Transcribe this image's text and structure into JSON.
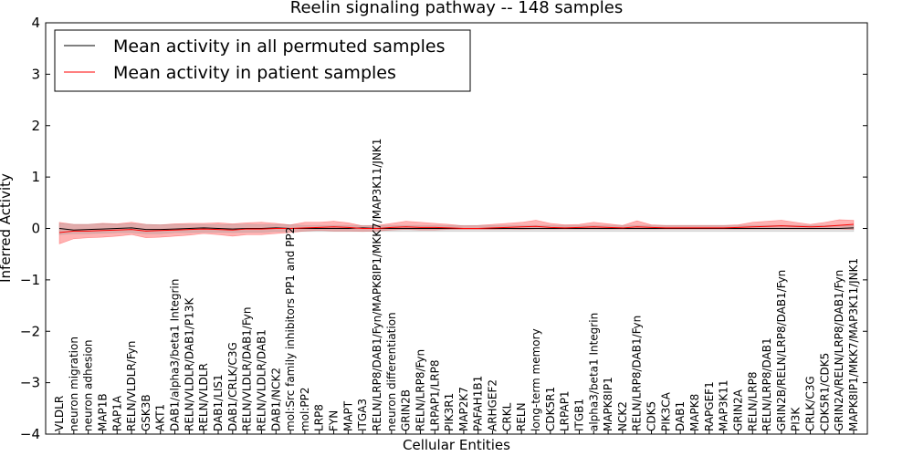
{
  "chart_data": {
    "type": "line",
    "title": "Reelin signaling pathway -- 148 samples",
    "xlabel": "Cellular Entities",
    "ylabel": "Inferred Activity",
    "ylim": [
      -4,
      4
    ],
    "yticks": [
      "−4",
      "−3",
      "−2",
      "−1",
      "0",
      "1",
      "2",
      "3",
      "4"
    ],
    "legend_position": "top-left",
    "categories": [
      "VLDLR",
      "neuron migration",
      "neuron adhesion",
      "MAP1B",
      "RAP1A",
      "RELN/VLDLR/Fyn",
      "GSK3B",
      "AKT1",
      "DAB1/alpha3/beta1 Integrin",
      "RELN/VLDLR/DAB1/P13K",
      "RELN/VLDLR",
      "DAB1/LIS1",
      "DAB1/CRLK/C3G",
      "RELN/VLDLR/DAB1/Fyn",
      "RELN/VLDLR/DAB1",
      "DAB1/NCK2",
      "mol:Src family inhibitors PP1 and PP2",
      "mol:PP2",
      "LRP8",
      "FYN",
      "MAPT",
      "ITGA3",
      "RELN/LRP8/DAB1/Fyn/MAPK8IP1/MKK7/MAP3K11/JNK1",
      "neuron differentiation",
      "GRIN2B",
      "RELN/LRP8/Fyn",
      "LRPAP1/LRP8",
      "PIK3R1",
      "MAP2K7",
      "PAFAH1B1",
      "ARHGEF2",
      "CRKL",
      "RELN",
      "long-term memory",
      "CDK5R1",
      "LRPAP1",
      "ITGB1",
      "alpha3/beta1 Integrin",
      "MAPK8IP1",
      "NCK2",
      "RELN/LRP8/DAB1/Fyn",
      "CDK5",
      "PIK3CA",
      "DAB1",
      "MAPK8",
      "RAPGEF1",
      "MAP3K11",
      "GRIN2A",
      "RELN/LRP8",
      "RELN/LRP8/DAB1",
      "GRIN2B/RELN/LRP8/DAB1/Fyn",
      "PI3K",
      "CRLK/C3G",
      "CDK5R1/CDK5",
      "GRIN2A/RELN/LRP8/DAB1/Fyn",
      "MAPK8IP1/MKK7/MAP3K11/JNK1"
    ],
    "series": [
      {
        "name": "Mean activity in all permuted samples",
        "color": "#000000",
        "values": [
          0.0,
          -0.03,
          -0.02,
          -0.01,
          0.0,
          0.01,
          -0.02,
          -0.02,
          -0.01,
          0.0,
          0.01,
          0.0,
          -0.01,
          0.0,
          0.0,
          0.01,
          0.0,
          0.0,
          0.0,
          0.0,
          0.0,
          0.01,
          0.0,
          0.0,
          0.0,
          0.0,
          0.0,
          0.0,
          0.0,
          0.0,
          0.0,
          0.0,
          0.0,
          0.0,
          0.0,
          0.0,
          0.0,
          0.0,
          0.0,
          0.0,
          0.0,
          0.0,
          0.0,
          0.0,
          0.0,
          0.0,
          0.0,
          0.0,
          0.0,
          0.0,
          0.0,
          0.0,
          0.0,
          0.0,
          0.0,
          0.01
        ],
        "band_low": [
          -0.12,
          -0.1,
          -0.1,
          -0.09,
          -0.08,
          -0.08,
          -0.1,
          -0.1,
          -0.08,
          -0.08,
          -0.07,
          -0.07,
          -0.08,
          -0.07,
          -0.07,
          -0.06,
          -0.06,
          -0.06,
          -0.06,
          -0.06,
          -0.06,
          -0.06,
          -0.06,
          -0.06,
          -0.06,
          -0.06,
          -0.06,
          -0.06,
          -0.06,
          -0.06,
          -0.06,
          -0.06,
          -0.06,
          -0.06,
          -0.06,
          -0.06,
          -0.06,
          -0.06,
          -0.06,
          -0.06,
          -0.06,
          -0.06,
          -0.06,
          -0.06,
          -0.06,
          -0.06,
          -0.06,
          -0.06,
          -0.06,
          -0.06,
          -0.06,
          -0.06,
          -0.06,
          -0.06,
          -0.06,
          -0.06
        ],
        "band_high": [
          0.1,
          0.08,
          0.08,
          0.09,
          0.08,
          0.09,
          0.08,
          0.07,
          0.08,
          0.08,
          0.08,
          0.07,
          0.08,
          0.08,
          0.07,
          0.08,
          0.07,
          0.06,
          0.06,
          0.06,
          0.06,
          0.06,
          0.06,
          0.06,
          0.06,
          0.06,
          0.06,
          0.06,
          0.06,
          0.06,
          0.06,
          0.06,
          0.06,
          0.06,
          0.06,
          0.06,
          0.06,
          0.06,
          0.06,
          0.06,
          0.06,
          0.06,
          0.06,
          0.06,
          0.06,
          0.06,
          0.06,
          0.06,
          0.06,
          0.06,
          0.06,
          0.06,
          0.06,
          0.06,
          0.06,
          0.06
        ]
      },
      {
        "name": "Mean activity in patient samples",
        "color": "#ff0000",
        "values": [
          -0.08,
          -0.05,
          -0.05,
          -0.04,
          -0.03,
          -0.02,
          -0.05,
          -0.04,
          -0.03,
          -0.02,
          -0.01,
          -0.02,
          -0.03,
          -0.01,
          -0.01,
          0.0,
          0.0,
          0.01,
          0.02,
          0.03,
          0.02,
          0.0,
          0.0,
          0.02,
          0.03,
          0.02,
          0.02,
          0.01,
          0.0,
          0.0,
          0.01,
          0.02,
          0.03,
          0.04,
          0.02,
          0.01,
          0.02,
          0.03,
          0.02,
          0.01,
          0.03,
          0.02,
          0.01,
          0.01,
          0.01,
          0.01,
          0.01,
          0.02,
          0.03,
          0.04,
          0.05,
          0.04,
          0.03,
          0.04,
          0.06,
          0.08
        ],
        "band_low": [
          -0.3,
          -0.2,
          -0.18,
          -0.17,
          -0.15,
          -0.12,
          -0.18,
          -0.17,
          -0.15,
          -0.13,
          -0.1,
          -0.12,
          -0.15,
          -0.12,
          -0.12,
          -0.1,
          -0.08,
          -0.05,
          -0.04,
          -0.05,
          -0.05,
          -0.06,
          -0.05,
          -0.03,
          -0.02,
          -0.03,
          -0.03,
          -0.02,
          -0.02,
          -0.02,
          -0.02,
          -0.01,
          -0.02,
          -0.01,
          -0.01,
          -0.01,
          -0.01,
          -0.01,
          -0.01,
          -0.01,
          -0.01,
          -0.01,
          -0.01,
          -0.01,
          -0.01,
          -0.01,
          -0.01,
          -0.01,
          -0.01,
          -0.01,
          -0.01,
          -0.01,
          -0.01,
          -0.01,
          -0.01,
          -0.02
        ],
        "band_high": [
          0.12,
          0.08,
          0.08,
          0.1,
          0.09,
          0.12,
          0.08,
          0.07,
          0.09,
          0.1,
          0.1,
          0.11,
          0.09,
          0.11,
          0.12,
          0.1,
          0.07,
          0.12,
          0.12,
          0.14,
          0.11,
          0.05,
          0.06,
          0.1,
          0.14,
          0.12,
          0.1,
          0.08,
          0.05,
          0.06,
          0.08,
          0.1,
          0.12,
          0.16,
          0.1,
          0.07,
          0.08,
          0.12,
          0.09,
          0.06,
          0.15,
          0.07,
          0.06,
          0.06,
          0.06,
          0.06,
          0.06,
          0.07,
          0.12,
          0.14,
          0.16,
          0.12,
          0.08,
          0.12,
          0.17,
          0.16
        ]
      }
    ]
  }
}
